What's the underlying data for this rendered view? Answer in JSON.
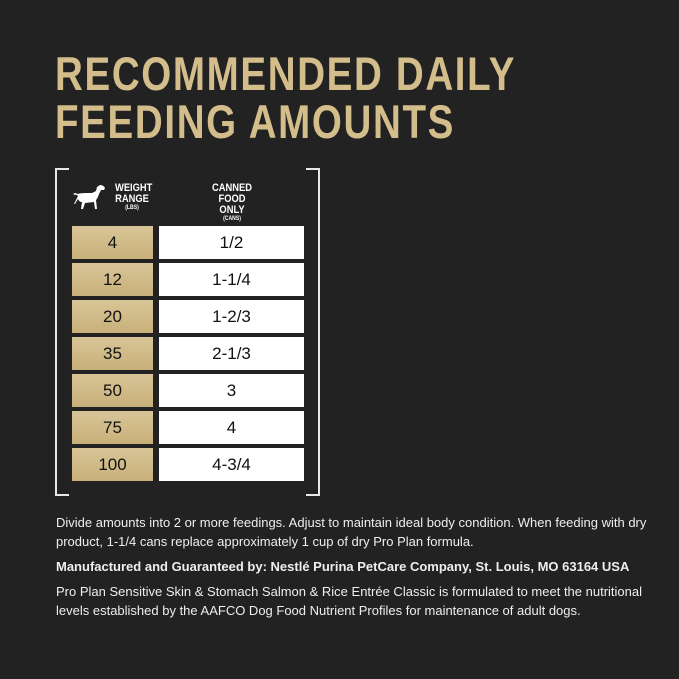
{
  "title": {
    "line1": "RECOMMENDED DAILY",
    "line2": "FEEDING AMOUNTS"
  },
  "colors": {
    "background": "#222222",
    "gold": "#d3bd8b"
  },
  "table": {
    "icon": "dog-icon",
    "headers": {
      "weight": "WEIGHT RANGE",
      "weight_unit": "(LBS)",
      "food": "CANNED FOOD ONLY",
      "food_unit": "(CANS)"
    },
    "rows": [
      {
        "weight": "4",
        "cans": "1/2"
      },
      {
        "weight": "12",
        "cans": "1-1/4"
      },
      {
        "weight": "20",
        "cans": "1-2/3"
      },
      {
        "weight": "35",
        "cans": "2-1/3"
      },
      {
        "weight": "50",
        "cans": "3"
      },
      {
        "weight": "75",
        "cans": "4"
      },
      {
        "weight": "100",
        "cans": "4-3/4"
      }
    ]
  },
  "notes": {
    "instructions": "Divide amounts into 2 or more feedings. Adjust to maintain ideal body condition. When feeding with dry product, 1-1/4 cans replace approximately 1 cup of dry Pro Plan formula.",
    "manufacturer": "Manufactured and Guaranteed by: Nestlé Purina PetCare Company, St. Louis, MO 63164 USA",
    "aafco": "Pro Plan Sensitive Skin & Stomach Salmon & Rice Entrée Classic is formulated to meet the nutritional levels established by the AAFCO Dog Food Nutrient Profiles for maintenance of adult dogs."
  }
}
